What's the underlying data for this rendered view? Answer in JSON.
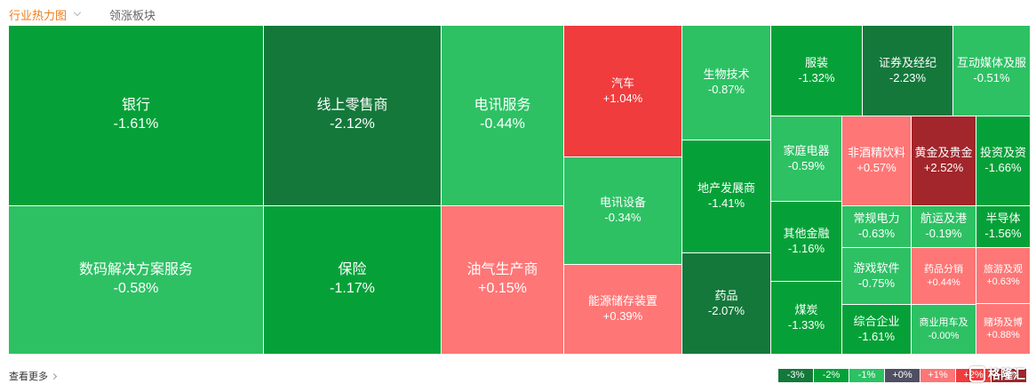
{
  "tabs": {
    "active": "行业热力图",
    "other": "领涨板块"
  },
  "colors": {
    "up_strong": "#a2262b",
    "up_mid": "#f03c3d",
    "up_light": "#fe7676",
    "flat": "#4f4f63",
    "down_light": "#2dc164",
    "down_mid": "#05a138",
    "down_strong": "#14783b"
  },
  "sectors": [
    {
      "name": "银行",
      "change": "-1.61%",
      "color": "#05a138"
    },
    {
      "name": "数码解决方案服务",
      "change": "-0.58%",
      "color": "#2dc164"
    },
    {
      "name": "线上零售商",
      "change": "-2.12%",
      "color": "#14783b"
    },
    {
      "name": "保险",
      "change": "-1.17%",
      "color": "#05a138"
    },
    {
      "name": "电讯服务",
      "change": "-0.44%",
      "color": "#2dc164"
    },
    {
      "name": "油气生产商",
      "change": "+0.15%",
      "color": "#fe7676"
    },
    {
      "name": "汽车",
      "change": "+1.04%",
      "color": "#f03c3d"
    },
    {
      "name": "电讯设备",
      "change": "-0.34%",
      "color": "#2dc164"
    },
    {
      "name": "能源储存装置",
      "change": "+0.39%",
      "color": "#fe7676"
    },
    {
      "name": "生物技术",
      "change": "-0.87%",
      "color": "#2dc164"
    },
    {
      "name": "地产发展商",
      "change": "-1.41%",
      "color": "#05a138"
    },
    {
      "name": "药品",
      "change": "-2.07%",
      "color": "#14783b"
    },
    {
      "name": "服装",
      "change": "-1.32%",
      "color": "#05a138"
    },
    {
      "name": "证券及经纪",
      "change": "-2.23%",
      "color": "#14783b"
    },
    {
      "name": "互动媒体及服",
      "change": "-0.51%",
      "color": "#2dc164"
    },
    {
      "name": "家庭电器",
      "change": "-0.59%",
      "color": "#2dc164"
    },
    {
      "name": "其他金融",
      "change": "-1.16%",
      "color": "#05a138"
    },
    {
      "name": "煤炭",
      "change": "-1.33%",
      "color": "#05a138"
    },
    {
      "name": "非酒精饮料",
      "change": "+0.57%",
      "color": "#fe7676"
    },
    {
      "name": "黄金及贵金",
      "change": "+2.52%",
      "color": "#a2262b"
    },
    {
      "name": "投资及资",
      "change": "-1.66%",
      "color": "#05a138"
    },
    {
      "name": "常规电力",
      "change": "-0.63%",
      "color": "#2dc164"
    },
    {
      "name": "航运及港",
      "change": "-0.19%",
      "color": "#2dc164"
    },
    {
      "name": "半导体",
      "change": "-1.56%",
      "color": "#05a138"
    },
    {
      "name": "游戏软件",
      "change": "-0.75%",
      "color": "#2dc164"
    },
    {
      "name": "综合企业",
      "change": "-1.61%",
      "color": "#05a138"
    },
    {
      "name": "药品分销",
      "change": "+0.44%",
      "color": "#fe7676"
    },
    {
      "name": "商业用车及",
      "change": "-0.00%",
      "color": "#2dc164"
    },
    {
      "name": "旅游及观",
      "change": "+0.63%",
      "color": "#fe7676"
    },
    {
      "name": "赌场及博",
      "change": "+0.88%",
      "color": "#fe7676"
    }
  ],
  "footer": {
    "more_label": "查看更多"
  },
  "legend": [
    {
      "label": "-3%",
      "color": "#14783b"
    },
    {
      "label": "-2%",
      "color": "#05a138"
    },
    {
      "label": "-1%",
      "color": "#2dc164"
    },
    {
      "label": "+0%",
      "color": "#4f4f63"
    },
    {
      "label": "+1%",
      "color": "#fe7676"
    },
    {
      "label": "+2%",
      "color": "#f03c3d"
    },
    {
      "label": "+3%",
      "color": "#a2262b"
    }
  ],
  "watermark": {
    "text": "格隆汇"
  }
}
